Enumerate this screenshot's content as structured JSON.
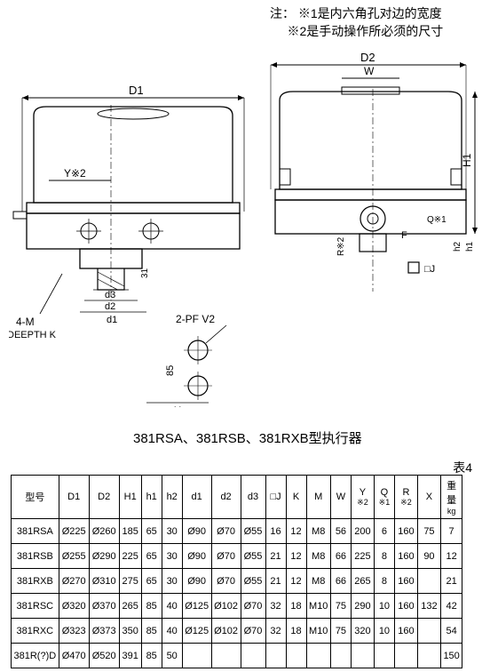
{
  "notes": {
    "prefix": "注：",
    "note1": "※1是内六角孔对边的宽度",
    "note2": "※2是手动操作所必须的尺寸"
  },
  "diagram": {
    "labels": {
      "d1_top": "D1",
      "d2_top": "D2",
      "w": "W",
      "h1": "H1",
      "y_note": "Y※2",
      "four_m": "4-M",
      "depth_k": "DEEPTH K",
      "d1_bot": "d1",
      "d2_bot": "d2",
      "d3_bot": "d3",
      "two_pf": "2-PF V2",
      "dim_31": "31",
      "dim_85": "85",
      "x": "X",
      "f": "F",
      "q_note": "Q※1",
      "r_note": "R※2",
      "h1_small": "h1",
      "h2_small": "h2",
      "j_box": "□J"
    },
    "colors": {
      "line": "#000000",
      "hatch": "#000000"
    }
  },
  "title": "381RSA、381RSB、381RXB型执行器",
  "table_label": "表4",
  "table": {
    "headers": {
      "type": "型号",
      "d1": "D1",
      "d2": "D2",
      "h1": "H1",
      "h1b": "h1",
      "h2": "h2",
      "d1b": "d1",
      "d2b": "d2",
      "d3": "d3",
      "j": "□J",
      "k": "K",
      "m": "M",
      "w": "W",
      "y": "Y",
      "y_sub": "※2",
      "q": "Q",
      "q_sub": "※1",
      "r": "R",
      "r_sub": "※2",
      "x": "X",
      "weight": "重量",
      "weight_sub": "kg"
    },
    "rows": [
      {
        "type": "381RSA",
        "d1": "Ø225",
        "d2": "Ø260",
        "h1": "185",
        "h1b": "65",
        "h2": "30",
        "d1b": "Ø90",
        "d2b": "Ø70",
        "d3": "Ø55",
        "j": "16",
        "k": "12",
        "m": "M8",
        "w": "56",
        "y": "200",
        "q": "6",
        "r": "160",
        "x": "75",
        "wt": "7"
      },
      {
        "type": "381RSB",
        "d1": "Ø255",
        "d2": "Ø290",
        "h1": "225",
        "h1b": "65",
        "h2": "30",
        "d1b": "Ø90",
        "d2b": "Ø70",
        "d3": "Ø55",
        "j": "21",
        "k": "12",
        "m": "M8",
        "w": "66",
        "y": "225",
        "q": "8",
        "r": "160",
        "x": "90",
        "wt": "12"
      },
      {
        "type": "381RXB",
        "d1": "Ø270",
        "d2": "Ø310",
        "h1": "275",
        "h1b": "65",
        "h2": "30",
        "d1b": "Ø90",
        "d2b": "Ø70",
        "d3": "Ø55",
        "j": "21",
        "k": "12",
        "m": "M8",
        "w": "66",
        "y": "265",
        "q": "8",
        "r": "160",
        "x": "",
        "wt": "21"
      },
      {
        "type": "381RSC",
        "d1": "Ø320",
        "d2": "Ø370",
        "h1": "265",
        "h1b": "85",
        "h2": "40",
        "d1b": "Ø125",
        "d2b": "Ø102",
        "d3": "Ø70",
        "j": "32",
        "k": "18",
        "m": "M10",
        "w": "75",
        "y": "290",
        "q": "10",
        "r": "160",
        "x": "132",
        "wt": "42"
      },
      {
        "type": "381RXC",
        "d1": "Ø323",
        "d2": "Ø373",
        "h1": "350",
        "h1b": "85",
        "h2": "40",
        "d1b": "Ø125",
        "d2b": "Ø102",
        "d3": "Ø70",
        "j": "32",
        "k": "18",
        "m": "M10",
        "w": "75",
        "y": "320",
        "q": "10",
        "r": "160",
        "x": "",
        "wt": "54"
      },
      {
        "type": "381R(?)D",
        "d1": "Ø470",
        "d2": "Ø520",
        "h1": "391",
        "h1b": "85",
        "h2": "50",
        "d1b": "",
        "d2b": "",
        "d3": "",
        "j": "",
        "k": "",
        "m": "",
        "w": "",
        "y": "",
        "q": "",
        "r": "",
        "x": "",
        "wt": "150"
      }
    ]
  }
}
